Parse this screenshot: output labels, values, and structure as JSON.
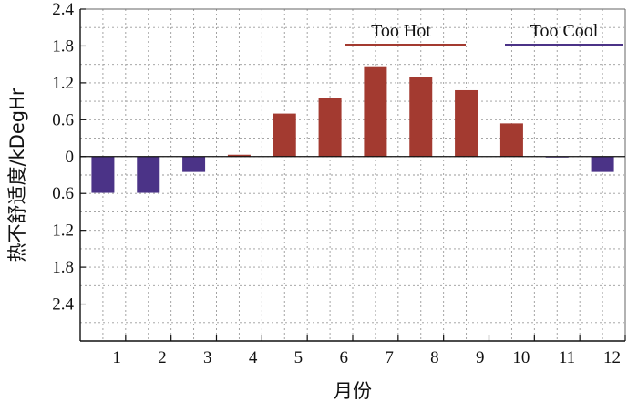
{
  "chart_data": {
    "type": "bar",
    "xlabel": "月份",
    "ylabel": "热不舒适度/kDegHr",
    "x_ticks": [
      "1",
      "2",
      "3",
      "4",
      "5",
      "6",
      "7",
      "8",
      "9",
      "10",
      "11",
      "12"
    ],
    "x_range": [
      0,
      12
    ],
    "y_ticks": [
      {
        "value": 2.4,
        "label": "2.4"
      },
      {
        "value": 1.8,
        "label": "1.8"
      },
      {
        "value": 1.2,
        "label": "1.2"
      },
      {
        "value": 0.6,
        "label": "0.6"
      },
      {
        "value": 0,
        "label": "0"
      },
      {
        "value": -0.6,
        "label": "0.6"
      },
      {
        "value": -1.2,
        "label": "1.2"
      },
      {
        "value": -1.8,
        "label": "1.8"
      },
      {
        "value": -2.4,
        "label": "2.4"
      }
    ],
    "ylim": [
      -3.0,
      2.4
    ],
    "grid": true,
    "bars": [
      {
        "x": 0.5,
        "value": -0.59,
        "series": "cool"
      },
      {
        "x": 1.5,
        "value": -0.59,
        "series": "cool"
      },
      {
        "x": 2.5,
        "value": -0.25,
        "series": "cool"
      },
      {
        "x": 3.5,
        "value": 0.03,
        "series": "hot"
      },
      {
        "x": 4.5,
        "value": 0.7,
        "series": "hot"
      },
      {
        "x": 5.5,
        "value": 0.96,
        "series": "hot"
      },
      {
        "x": 6.5,
        "value": 1.47,
        "series": "hot"
      },
      {
        "x": 7.5,
        "value": 1.29,
        "series": "hot"
      },
      {
        "x": 8.5,
        "value": 1.08,
        "series": "hot"
      },
      {
        "x": 9.5,
        "value": 0.54,
        "series": "hot"
      },
      {
        "x": 10.5,
        "value": -0.01,
        "series": "cool"
      },
      {
        "x": 11.5,
        "value": -0.25,
        "series": "cool"
      }
    ],
    "series": [
      {
        "key": "hot",
        "name": "Too Hot",
        "color": "#a33a30"
      },
      {
        "key": "cool",
        "name": "Too Cool",
        "color": "#4b3387"
      }
    ],
    "legend_placement": "top-right"
  }
}
